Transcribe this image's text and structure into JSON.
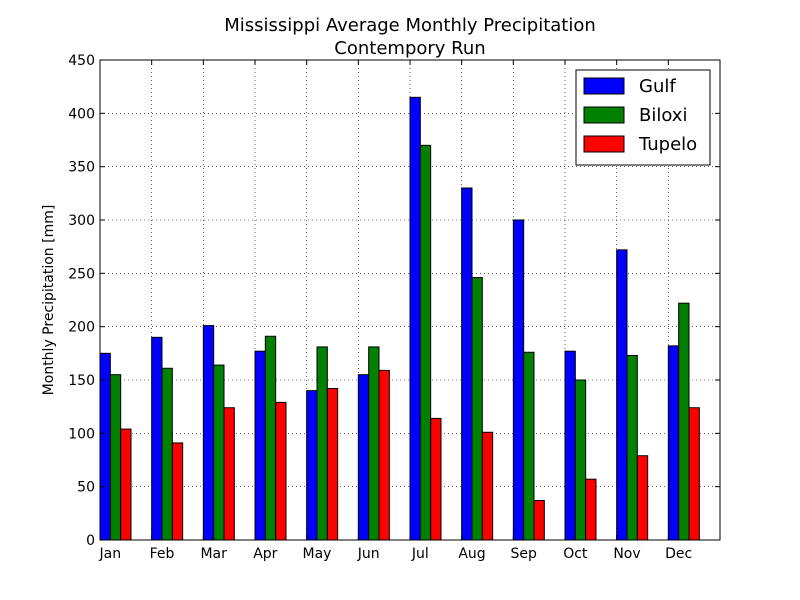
{
  "chart_data": {
    "type": "bar",
    "title": "Mississippi Average Monthly Precipitation",
    "subtitle": "Contempory Run",
    "xlabel": "",
    "ylabel": "Monthly Precipitation [mm]",
    "ylim": [
      0,
      450
    ],
    "yticks": [
      0,
      50,
      100,
      150,
      200,
      250,
      300,
      350,
      400,
      450
    ],
    "grid": true,
    "legend_position": "top-right",
    "categories": [
      "Jan",
      "Feb",
      "Mar",
      "Apr",
      "May",
      "Jun",
      "Jul",
      "Aug",
      "Sep",
      "Oct",
      "Nov",
      "Dec"
    ],
    "series": [
      {
        "name": "Gulf",
        "color": "#0000ff",
        "values": [
          175,
          190,
          201,
          177,
          140,
          155,
          415,
          330,
          300,
          177,
          272,
          182
        ]
      },
      {
        "name": "Biloxi",
        "color": "#008000",
        "values": [
          155,
          161,
          164,
          191,
          181,
          181,
          370,
          246,
          176,
          150,
          173,
          222
        ]
      },
      {
        "name": "Tupelo",
        "color": "#ff0000",
        "values": [
          104,
          91,
          124,
          129,
          142,
          159,
          114,
          101,
          37,
          57,
          79,
          124
        ]
      }
    ]
  }
}
